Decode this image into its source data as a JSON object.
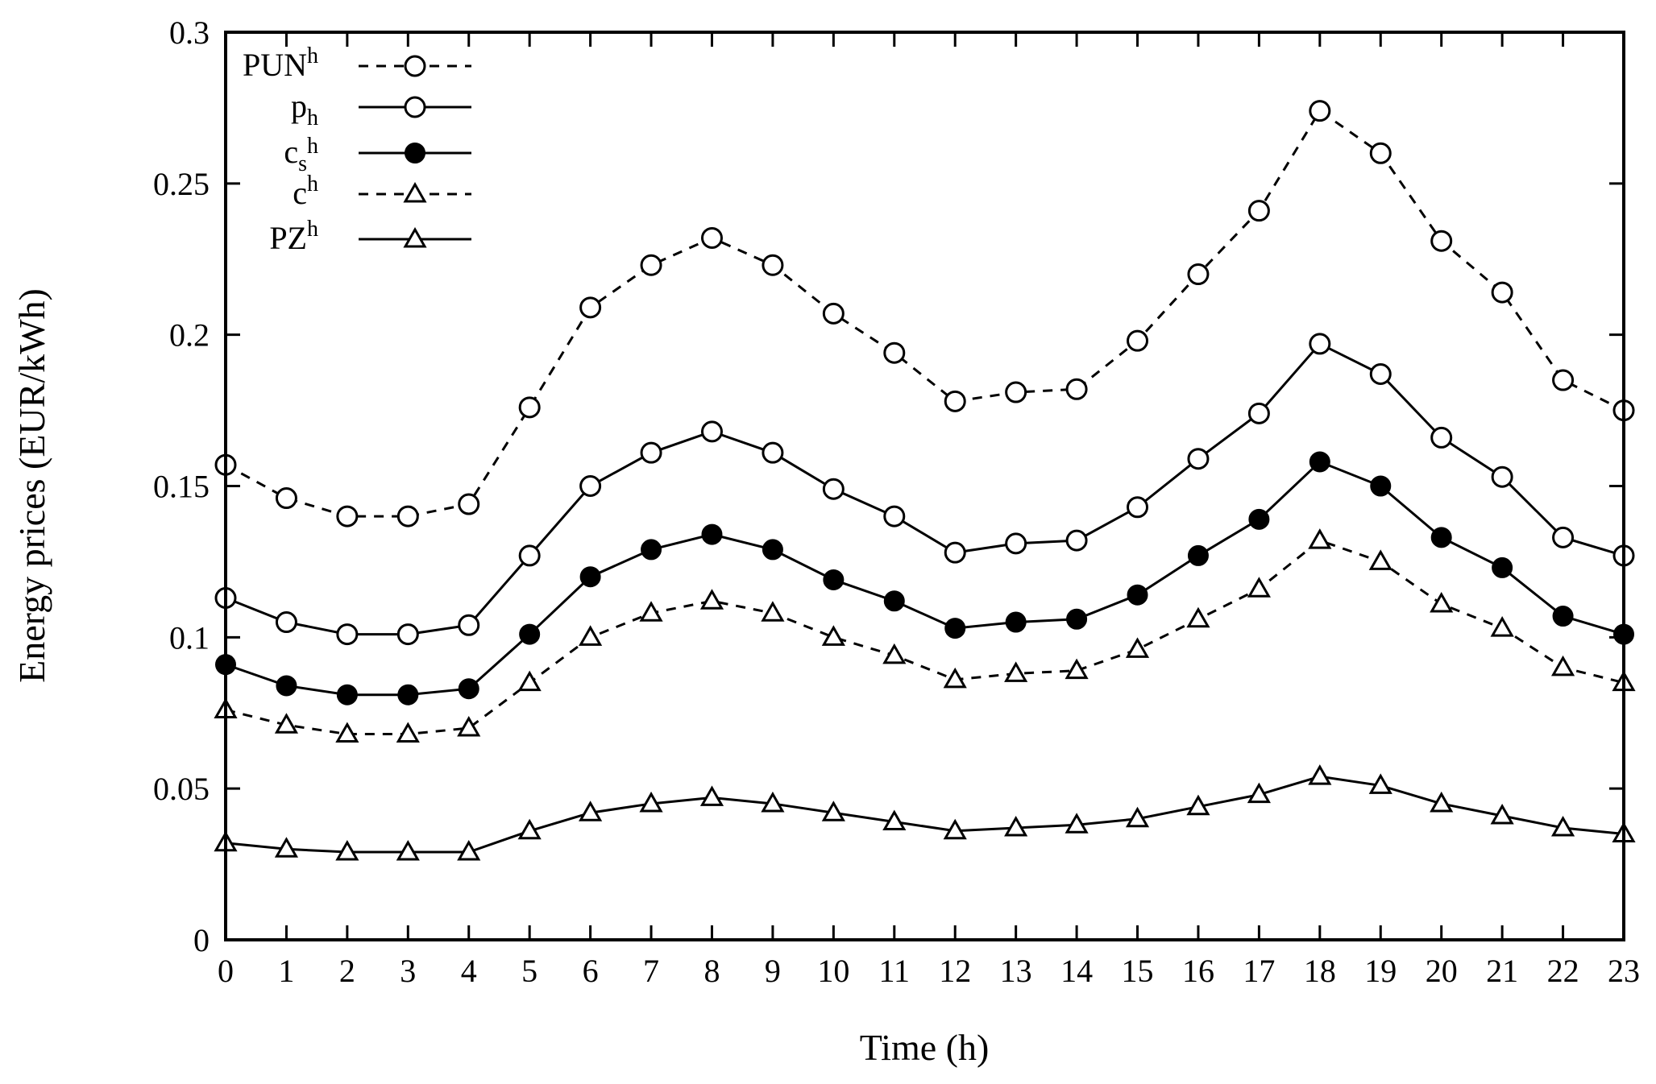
{
  "chart_data": {
    "type": "line",
    "title": "",
    "xlabel": "Time (h)",
    "ylabel": "Energy prices (EUR/kWh)",
    "xlim": [
      0,
      23
    ],
    "ylim": [
      0,
      0.3
    ],
    "x_ticks": [
      "0",
      "1",
      "2",
      "3",
      "4",
      "5",
      "6",
      "7",
      "8",
      "9",
      "10",
      "11",
      "12",
      "13",
      "14",
      "15",
      "16",
      "17",
      "18",
      "19",
      "20",
      "21",
      "22",
      "23"
    ],
    "y_ticks": [
      "0",
      "0.05",
      "0.1",
      "0.15",
      "0.2",
      "0.25",
      "0.3"
    ],
    "grid": false,
    "legend_position": "top-left",
    "x": [
      0,
      1,
      2,
      3,
      4,
      5,
      6,
      7,
      8,
      9,
      10,
      11,
      12,
      13,
      14,
      15,
      16,
      17,
      18,
      19,
      20,
      21,
      22,
      23
    ],
    "series": [
      {
        "name": "PUN",
        "name_sup": "h",
        "name_sub": "",
        "line_style": "dashed",
        "marker": "open-circle",
        "values": [
          0.157,
          0.146,
          0.14,
          0.14,
          0.144,
          0.176,
          0.209,
          0.223,
          0.232,
          0.223,
          0.207,
          0.194,
          0.178,
          0.181,
          0.182,
          0.198,
          0.22,
          0.241,
          0.274,
          0.26,
          0.231,
          0.214,
          0.185,
          0.175
        ]
      },
      {
        "name": "p",
        "name_sup": "",
        "name_sub": "h",
        "line_style": "solid",
        "marker": "open-circle",
        "values": [
          0.113,
          0.105,
          0.101,
          0.101,
          0.104,
          0.127,
          0.15,
          0.161,
          0.168,
          0.161,
          0.149,
          0.14,
          0.128,
          0.131,
          0.132,
          0.143,
          0.159,
          0.174,
          0.197,
          0.187,
          0.166,
          0.153,
          0.133,
          0.127
        ]
      },
      {
        "name": "c",
        "name_sup": "",
        "name_sub": "s",
        "name_subsub": "h",
        "line_style": "solid",
        "marker": "filled-circle",
        "values": [
          0.091,
          0.084,
          0.081,
          0.081,
          0.083,
          0.101,
          0.12,
          0.129,
          0.134,
          0.129,
          0.119,
          0.112,
          0.103,
          0.105,
          0.106,
          0.114,
          0.127,
          0.139,
          0.158,
          0.15,
          0.133,
          0.123,
          0.107,
          0.101
        ]
      },
      {
        "name": "c",
        "name_sup": "h",
        "name_sub": "",
        "line_style": "dashed",
        "marker": "open-triangle",
        "values": [
          0.076,
          0.071,
          0.068,
          0.068,
          0.07,
          0.085,
          0.1,
          0.108,
          0.112,
          0.108,
          0.1,
          0.094,
          0.086,
          0.088,
          0.089,
          0.096,
          0.106,
          0.116,
          0.132,
          0.125,
          0.111,
          0.103,
          0.09,
          0.085
        ]
      },
      {
        "name": "PZ",
        "name_sup": "h",
        "name_sub": "",
        "line_style": "solid",
        "marker": "open-triangle",
        "values": [
          0.032,
          0.03,
          0.029,
          0.029,
          0.029,
          0.036,
          0.042,
          0.045,
          0.047,
          0.045,
          0.042,
          0.039,
          0.036,
          0.037,
          0.038,
          0.04,
          0.044,
          0.048,
          0.054,
          0.051,
          0.045,
          0.041,
          0.037,
          0.035
        ]
      }
    ]
  }
}
